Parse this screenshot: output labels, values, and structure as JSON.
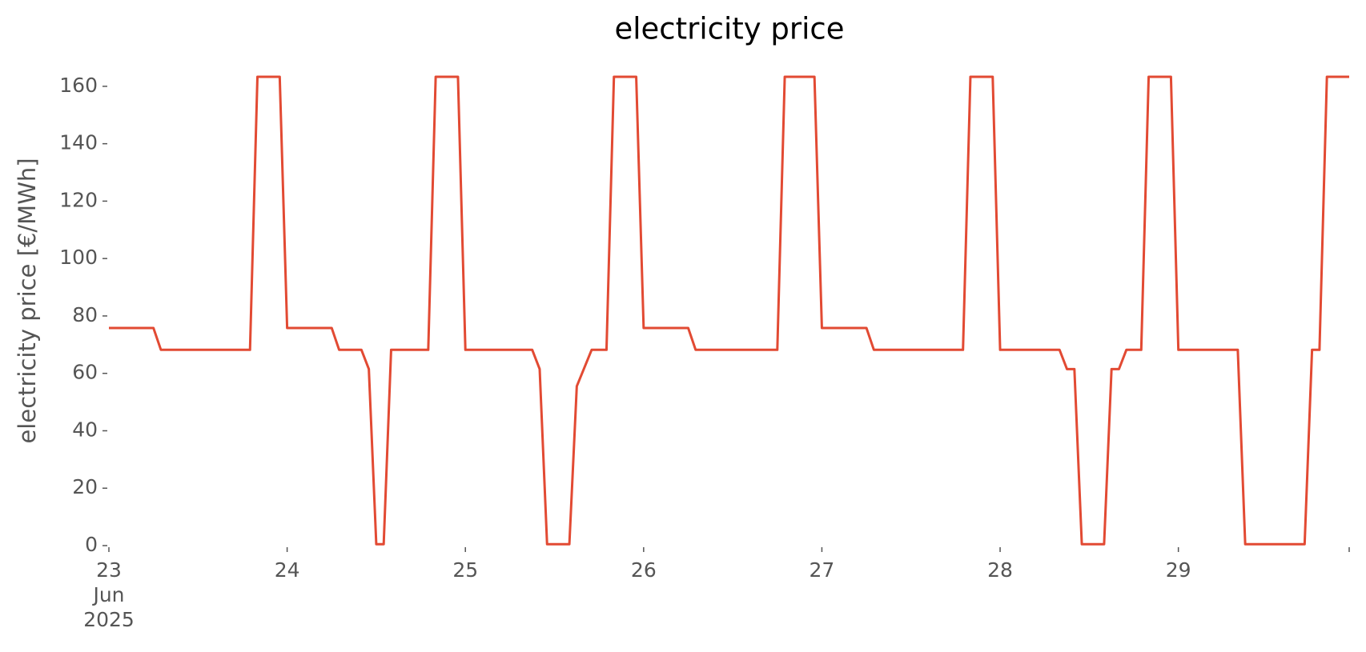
{
  "chart_data": {
    "type": "line",
    "title": "electricity price",
    "y_label": "electricity price [€/MWh]",
    "x": [
      "2025-06-23T00:00",
      "2025-06-23T06:00",
      "2025-06-23T07:00",
      "2025-06-23T19:00",
      "2025-06-23T20:00",
      "2025-06-23T23:00",
      "2025-06-24T00:00",
      "2025-06-24T06:00",
      "2025-06-24T07:00",
      "2025-06-24T10:00",
      "2025-06-24T11:00",
      "2025-06-24T12:00",
      "2025-06-24T13:00",
      "2025-06-24T14:00",
      "2025-06-24T19:00",
      "2025-06-24T20:00",
      "2025-06-24T23:00",
      "2025-06-25T00:00",
      "2025-06-25T09:00",
      "2025-06-25T10:00",
      "2025-06-25T11:00",
      "2025-06-25T14:00",
      "2025-06-25T15:00",
      "2025-06-25T17:00",
      "2025-06-25T19:00",
      "2025-06-25T20:00",
      "2025-06-25T23:00",
      "2025-06-26T00:00",
      "2025-06-26T06:00",
      "2025-06-26T07:00",
      "2025-06-26T18:00",
      "2025-06-26T19:00",
      "2025-06-26T23:00",
      "2025-06-27T00:00",
      "2025-06-27T06:00",
      "2025-06-27T07:00",
      "2025-06-27T19:00",
      "2025-06-27T20:00",
      "2025-06-27T23:00",
      "2025-06-28T00:00",
      "2025-06-28T08:00",
      "2025-06-28T09:00",
      "2025-06-28T10:00",
      "2025-06-28T11:00",
      "2025-06-28T14:00",
      "2025-06-28T15:00",
      "2025-06-28T16:00",
      "2025-06-28T17:00",
      "2025-06-28T19:00",
      "2025-06-28T20:00",
      "2025-06-28T23:00",
      "2025-06-29T00:00",
      "2025-06-29T08:00",
      "2025-06-29T09:00",
      "2025-06-29T17:00",
      "2025-06-29T18:00",
      "2025-06-29T19:00",
      "2025-06-29T20:00",
      "2025-06-29T23:00"
    ],
    "series": [
      {
        "name": "electricity price",
        "color": "#E24A33",
        "values": [
          75.8,
          75.8,
          68.2,
          68.2,
          163.3,
          163.3,
          75.8,
          75.8,
          68.2,
          68.2,
          61.5,
          0.5,
          0.5,
          68.2,
          68.2,
          163.3,
          163.3,
          68.2,
          68.2,
          61.5,
          0.5,
          0.5,
          55.5,
          68.2,
          68.2,
          163.3,
          163.3,
          75.8,
          75.8,
          68.2,
          68.2,
          163.3,
          163.3,
          75.8,
          75.8,
          68.2,
          68.2,
          163.3,
          163.3,
          68.2,
          68.2,
          61.5,
          61.5,
          0.5,
          0.5,
          61.5,
          61.5,
          68.2,
          68.2,
          163.3,
          163.3,
          68.2,
          68.2,
          0.5,
          0.5,
          68.2,
          68.2,
          163.3,
          163.3
        ]
      }
    ],
    "xlim": [
      "2025-06-23T00:00",
      "2025-06-29T23:00"
    ],
    "xticks": [
      {
        "value": "2025-06-23T00:00",
        "label": "23\nJun\n2025"
      },
      {
        "value": "2025-06-24T00:00",
        "label": "24"
      },
      {
        "value": "2025-06-25T00:00",
        "label": "25"
      },
      {
        "value": "2025-06-26T00:00",
        "label": "26"
      },
      {
        "value": "2025-06-27T00:00",
        "label": "27"
      },
      {
        "value": "2025-06-28T00:00",
        "label": "28"
      },
      {
        "value": "2025-06-29T00:00",
        "label": "29"
      }
    ],
    "ylim": [
      0,
      170
    ],
    "yticks": [
      0,
      20,
      40,
      60,
      80,
      100,
      120,
      140,
      160
    ],
    "grid": false
  }
}
